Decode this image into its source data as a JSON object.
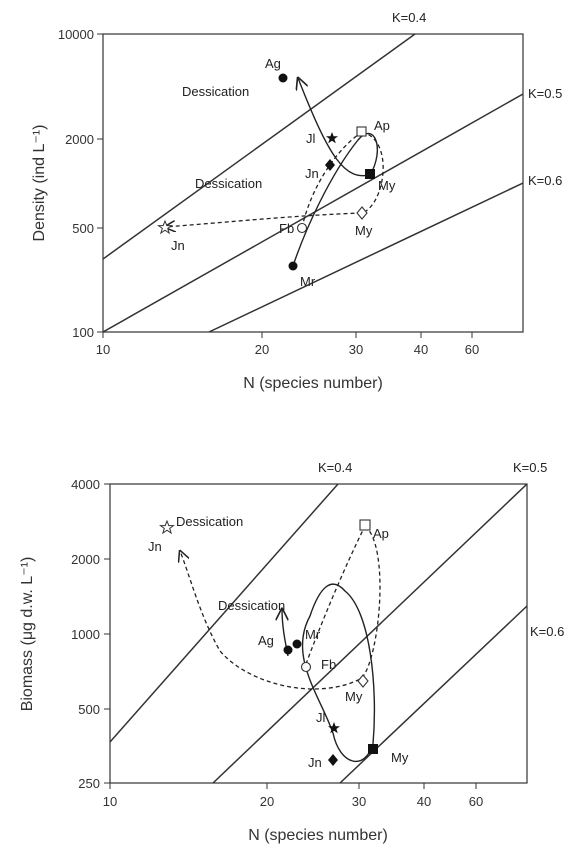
{
  "chart_data": [
    {
      "type": "scatter",
      "x_scale": "log",
      "y_scale": "log",
      "xlim": [
        10,
        75
      ],
      "ylim": [
        100,
        10000
      ],
      "xlabel": "N (species number)",
      "ylabel": "Density (ind L⁻¹)",
      "x_ticks": [
        "10",
        "20",
        "30",
        "40",
        "60"
      ],
      "x_tick_values": [
        10,
        20,
        30,
        40,
        60
      ],
      "y_ticks": [
        "100",
        "500",
        "2000",
        "10000"
      ],
      "y_tick_values": [
        100,
        500,
        2000,
        10000
      ],
      "k_lines": [
        {
          "label": "K=0.4",
          "k": 0.4
        },
        {
          "label": "K=0.5",
          "k": 0.5
        },
        {
          "label": "K=0.6",
          "k": 0.6
        }
      ],
      "points": [
        {
          "label": "Ag",
          "x": 22,
          "y": 4600,
          "marker": "circle-filled"
        },
        {
          "label": "Jl",
          "x": 27,
          "y": 1900,
          "marker": "star-filled"
        },
        {
          "label": "Ap",
          "x": 31,
          "y": 2150,
          "marker": "square-open"
        },
        {
          "label": "Jn",
          "x": 27,
          "y": 1180,
          "marker": "diamond-filled"
        },
        {
          "label": "My",
          "x": 32,
          "y": 1000,
          "marker": "square-filled"
        },
        {
          "label": "My",
          "x": 31,
          "y": 640,
          "marker": "diamond-open"
        },
        {
          "label": "Fb",
          "x": 24,
          "y": 480,
          "marker": "circle-open"
        },
        {
          "label": "Jn",
          "x": 13,
          "y": 480,
          "marker": "star-open"
        },
        {
          "label": "Mr",
          "x": 23,
          "y": 250,
          "marker": "circle-filled"
        }
      ],
      "annotations": [
        "Dessication",
        "Dessication"
      ]
    },
    {
      "type": "scatter",
      "x_scale": "log",
      "y_scale": "log",
      "xlim": [
        10,
        75
      ],
      "ylim": [
        250,
        4000
      ],
      "xlabel": "N (species number)",
      "ylabel": "Biomass (μg d.w. L⁻¹)",
      "x_ticks": [
        "10",
        "20",
        "30",
        "40",
        "60"
      ],
      "x_tick_values": [
        10,
        20,
        30,
        40,
        60
      ],
      "y_ticks": [
        "250",
        "500",
        "1000",
        "2000",
        "4000"
      ],
      "y_tick_values": [
        250,
        500,
        1000,
        2000,
        4000
      ],
      "k_lines": [
        {
          "label": "K=0.4",
          "k": 0.4
        },
        {
          "label": "K=0.5",
          "k": 0.5
        },
        {
          "label": "K=0.6",
          "k": 0.6
        }
      ],
      "points": [
        {
          "label": "Jn",
          "x": 13,
          "y": 2900,
          "marker": "star-open"
        },
        {
          "label": "Ap",
          "x": 31,
          "y": 2950,
          "marker": "square-open"
        },
        {
          "label": "Ag",
          "x": 22,
          "y": 820,
          "marker": "circle-filled"
        },
        {
          "label": "Mr",
          "x": 23,
          "y": 870,
          "marker": "circle-filled"
        },
        {
          "label": "Fb",
          "x": 24,
          "y": 700,
          "marker": "circle-open"
        },
        {
          "label": "My",
          "x": 31,
          "y": 600,
          "marker": "diamond-open"
        },
        {
          "label": "Jl",
          "x": 27,
          "y": 430,
          "marker": "star-filled"
        },
        {
          "label": "Jn",
          "x": 27,
          "y": 305,
          "marker": "diamond-filled"
        },
        {
          "label": "My",
          "x": 32,
          "y": 340,
          "marker": "square-filled"
        }
      ],
      "annotations": [
        "Dessication",
        "Dessication"
      ]
    }
  ]
}
